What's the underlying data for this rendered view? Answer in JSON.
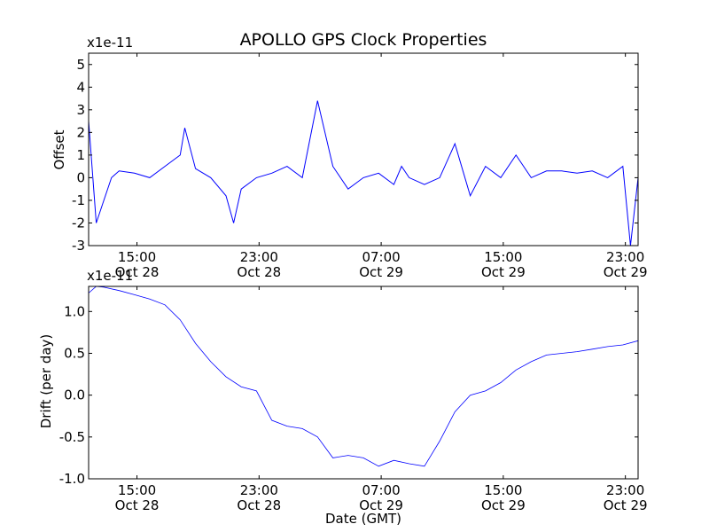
{
  "chart_data": {
    "title": "APOLLO GPS Clock Properties",
    "color": "#0000ff",
    "xticks": [
      {
        "time": "15:00",
        "date": "Oct 28"
      },
      {
        "time": "23:00",
        "date": "Oct 28"
      },
      {
        "time": "07:00",
        "date": "Oct 29"
      },
      {
        "time": "15:00",
        "date": "Oct 29"
      },
      {
        "time": "23:00",
        "date": "Oct 29"
      }
    ],
    "xlim": [
      "2009-10-28 11:50",
      "2009-10-29 23:50"
    ],
    "panels": [
      {
        "type": "line",
        "ylabel": "Offset",
        "scale_label": "x1e-11",
        "ylim": [
          -3,
          5.5
        ],
        "yticks": [
          "-3",
          "-2",
          "-1",
          "0",
          "1",
          "2",
          "3",
          "4",
          "5"
        ],
        "x_hours": [
          0,
          0.5,
          1,
          1.5,
          2,
          3,
          4,
          5,
          6,
          6.3,
          7,
          8,
          9,
          9.5,
          10,
          11,
          12,
          13,
          14,
          15,
          16,
          17,
          18,
          19,
          20,
          20.5,
          21,
          22,
          23,
          24,
          25,
          26,
          27,
          28,
          29,
          30,
          31,
          32,
          33,
          34,
          35,
          35.5,
          36
        ],
        "values": [
          2.5,
          -2.0,
          -1.0,
          0.0,
          0.3,
          0.2,
          0.0,
          0.5,
          1.0,
          2.2,
          0.4,
          0.0,
          -0.8,
          -2.0,
          -0.5,
          0.0,
          0.2,
          0.5,
          0.0,
          3.4,
          0.5,
          -0.5,
          0.0,
          0.2,
          -0.3,
          0.5,
          0.0,
          -0.3,
          0.0,
          1.5,
          -0.8,
          0.5,
          0.0,
          1.0,
          0.0,
          0.3,
          0.3,
          0.2,
          0.3,
          0.0,
          0.5,
          -3.0,
          0.0
        ]
      },
      {
        "type": "line",
        "ylabel": "Drift (per day)",
        "scale_label": "x1e-11",
        "xlabel": "Date (GMT)",
        "ylim": [
          -1.0,
          1.3
        ],
        "yticks": [
          "-1.0",
          "-0.5",
          "0.0",
          "0.5",
          "1.0"
        ],
        "x_hours": [
          0,
          0.5,
          1,
          2,
          3,
          4,
          5,
          6,
          7,
          8,
          9,
          10,
          11,
          12,
          13,
          14,
          15,
          16,
          17,
          18,
          19,
          20,
          21,
          22,
          23,
          24,
          25,
          26,
          27,
          28,
          29,
          30,
          31,
          32,
          33,
          34,
          35,
          36
        ],
        "values": [
          1.22,
          1.3,
          1.29,
          1.25,
          1.2,
          1.15,
          1.08,
          0.9,
          0.62,
          0.4,
          0.22,
          0.1,
          0.05,
          -0.3,
          -0.37,
          -0.4,
          -0.5,
          -0.75,
          -0.72,
          -0.75,
          -0.85,
          -0.78,
          -0.82,
          -0.85,
          -0.55,
          -0.2,
          0.0,
          0.05,
          0.15,
          0.3,
          0.4,
          0.48,
          0.5,
          0.52,
          0.55,
          0.58,
          0.6,
          0.65
        ]
      }
    ]
  }
}
